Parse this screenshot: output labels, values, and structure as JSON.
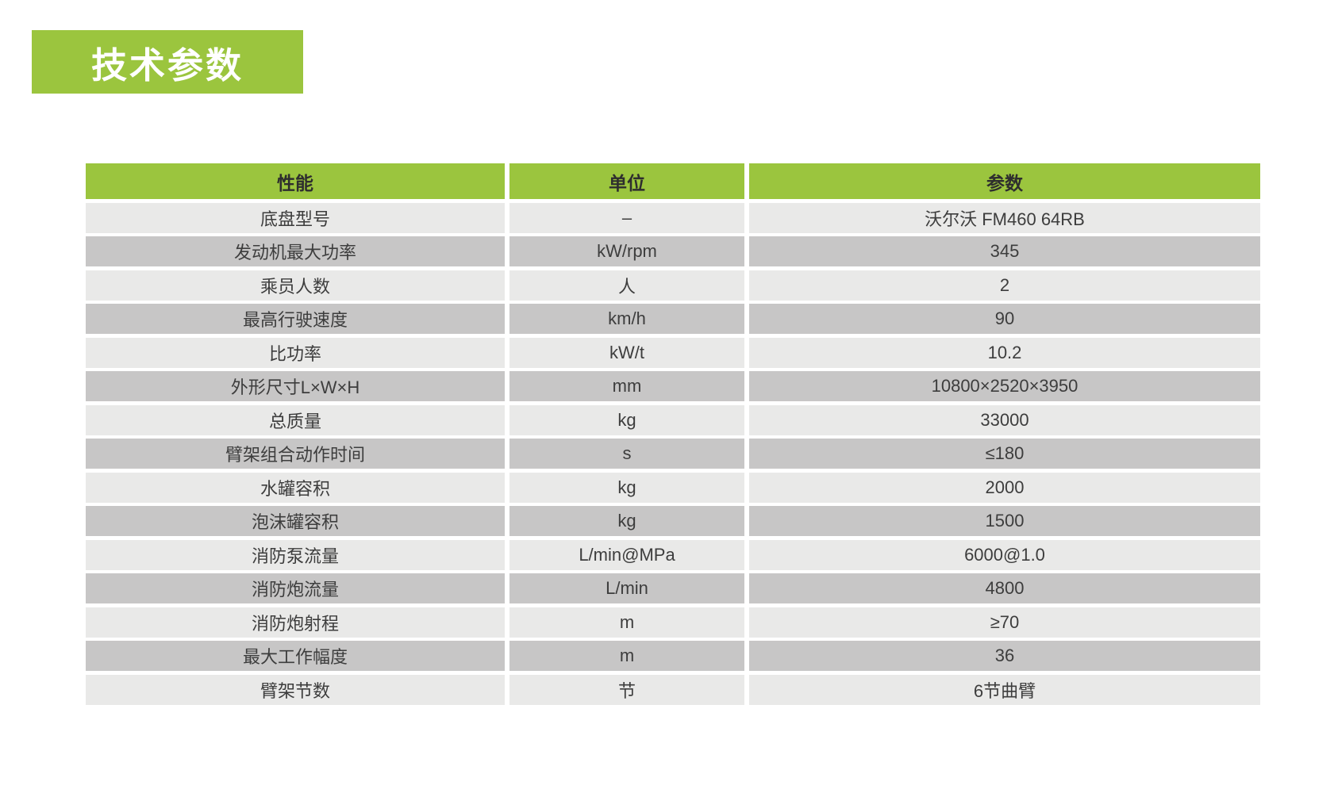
{
  "title": {
    "text": "技术参数"
  },
  "colors": {
    "accent_green": "#9bc53e",
    "row_light": "#e9e9e8",
    "row_dark": "#c7c6c6",
    "header_text": "#2e2e2e",
    "body_text": "#3d3d3d",
    "title_text": "#ffffff"
  },
  "table": {
    "headers": [
      "性能",
      "单位",
      "参数"
    ],
    "rows": [
      {
        "name": "底盘型号",
        "unit": "–",
        "value": "沃尔沃 FM460 64RB"
      },
      {
        "name": "发动机最大功率",
        "unit": "kW/rpm",
        "value": "345"
      },
      {
        "name": "乘员人数",
        "unit": "人",
        "value": "2"
      },
      {
        "name": "最高行驶速度",
        "unit": "km/h",
        "value": "90"
      },
      {
        "name": "比功率",
        "unit": "kW/t",
        "value": "10.2"
      },
      {
        "name": "外形尺寸L×W×H",
        "unit": "mm",
        "value": "10800×2520×3950"
      },
      {
        "name": "总质量",
        "unit": "kg",
        "value": "33000"
      },
      {
        "name": "臂架组合动作时间",
        "unit": "s",
        "value": "≤180"
      },
      {
        "name": "水罐容积",
        "unit": "kg",
        "value": "2000"
      },
      {
        "name": "泡沫罐容积",
        "unit": "kg",
        "value": "1500"
      },
      {
        "name": "消防泵流量",
        "unit": "L/min@MPa",
        "value": "6000@1.0"
      },
      {
        "name": "消防炮流量",
        "unit": "L/min",
        "value": "4800"
      },
      {
        "name": "消防炮射程",
        "unit": "m",
        "value": "≥70"
      },
      {
        "name": "最大工作幅度",
        "unit": "m",
        "value": "36"
      },
      {
        "name": "臂架节数",
        "unit": "节",
        "value": "6节曲臂"
      }
    ]
  }
}
